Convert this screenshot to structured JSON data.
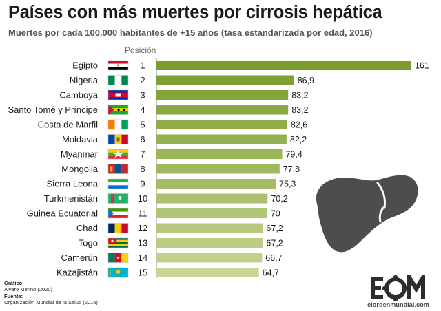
{
  "header": {
    "title": "Países con más muertes por cirrosis hepática",
    "subtitle": "Muertes por cada 100.000 habitantes de +15 años (tasa estandarizada por edad, 2016)",
    "position_label": "Posición"
  },
  "chart_data": {
    "type": "bar",
    "orientation": "horizontal",
    "title": "Países con más muertes por cirrosis hepática",
    "subtitle": "Muertes por cada 100.000 habitantes de +15 años (tasa estandarizada por edad, 2016)",
    "categories": [
      "Egipto",
      "Nigeria",
      "Camboya",
      "Santo Tomé y Príncipe",
      "Costa de Marfil",
      "Moldavia",
      "Myanmar",
      "Mongolia",
      "Sierra Leona",
      "Turkmenistán",
      "Guinea Ecuatorial",
      "Chad",
      "Togo",
      "Camerún",
      "Kazajistán"
    ],
    "positions": [
      "1",
      "2",
      "3",
      "4",
      "5",
      "6",
      "7",
      "8",
      "9",
      "10",
      "11",
      "12",
      "13",
      "14",
      "15"
    ],
    "values": [
      161,
      86.9,
      83.2,
      83.2,
      82.6,
      82.2,
      79.4,
      77.8,
      75.3,
      70.2,
      70,
      67.2,
      67.2,
      66.7,
      64.7
    ],
    "value_labels": [
      "161",
      "86,9",
      "83,2",
      "83,2",
      "82,6",
      "82,2",
      "79,4",
      "77,8",
      "75,3",
      "70,2",
      "70",
      "67,2",
      "67,2",
      "66,7",
      "64,7"
    ],
    "xlim": [
      0,
      161
    ],
    "grid": false,
    "legend": "none",
    "colors": {
      "bar_start": "#7a9d2c",
      "bar_end": "#c6d594"
    }
  },
  "flags": [
    "egypt-flag",
    "nigeria-flag",
    "cambodia-flag",
    "sao-tome-flag",
    "ivory-coast-flag",
    "moldova-flag",
    "myanmar-flag",
    "mongolia-flag",
    "sierra-leone-flag",
    "turkmenistan-flag",
    "equatorial-guinea-flag",
    "chad-flag",
    "togo-flag",
    "cameroon-flag",
    "kazakhstan-flag"
  ],
  "credits": {
    "graphic_label": "Gráfico:",
    "graphic_value": "Álvaro Merino (2020)",
    "source_label": "Fuente:",
    "source_value": "Organización Mundial de la Salud (2016)"
  },
  "logo": {
    "letters": "EOM",
    "site": "elordenmundial.com",
    "color": "#2d2d2d"
  },
  "icons": {
    "liver": "liver-icon",
    "liver_color": "#4d4d4d"
  }
}
